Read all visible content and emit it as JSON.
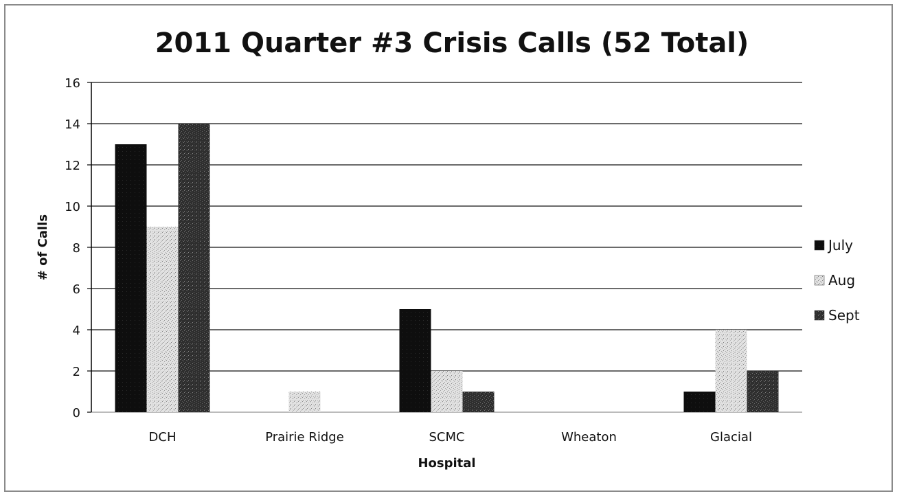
{
  "chart_data": {
    "type": "bar",
    "title": "2011 Quarter #3 Crisis Calls (52 Total)",
    "xlabel": "Hospital",
    "ylabel": "# of Calls",
    "categories": [
      "DCH",
      "Prairie Ridge",
      "SCMC",
      "Wheaton",
      "Glacial"
    ],
    "series": [
      {
        "name": "July",
        "values": [
          13,
          0,
          5,
          0,
          1
        ],
        "color": "#111111",
        "pattern": "solid-dark"
      },
      {
        "name": "Aug",
        "values": [
          9,
          1,
          2,
          0,
          4
        ],
        "color": "#d6d6d6",
        "pattern": "light-speckle"
      },
      {
        "name": "Sept",
        "values": [
          14,
          0,
          1,
          0,
          2
        ],
        "color": "#3c3c3c",
        "pattern": "dark-speckle"
      }
    ],
    "ylim": [
      0,
      16
    ],
    "yticks": [
      0,
      2,
      4,
      6,
      8,
      10,
      12,
      14,
      16
    ],
    "grid": true,
    "legend_position": "right"
  }
}
